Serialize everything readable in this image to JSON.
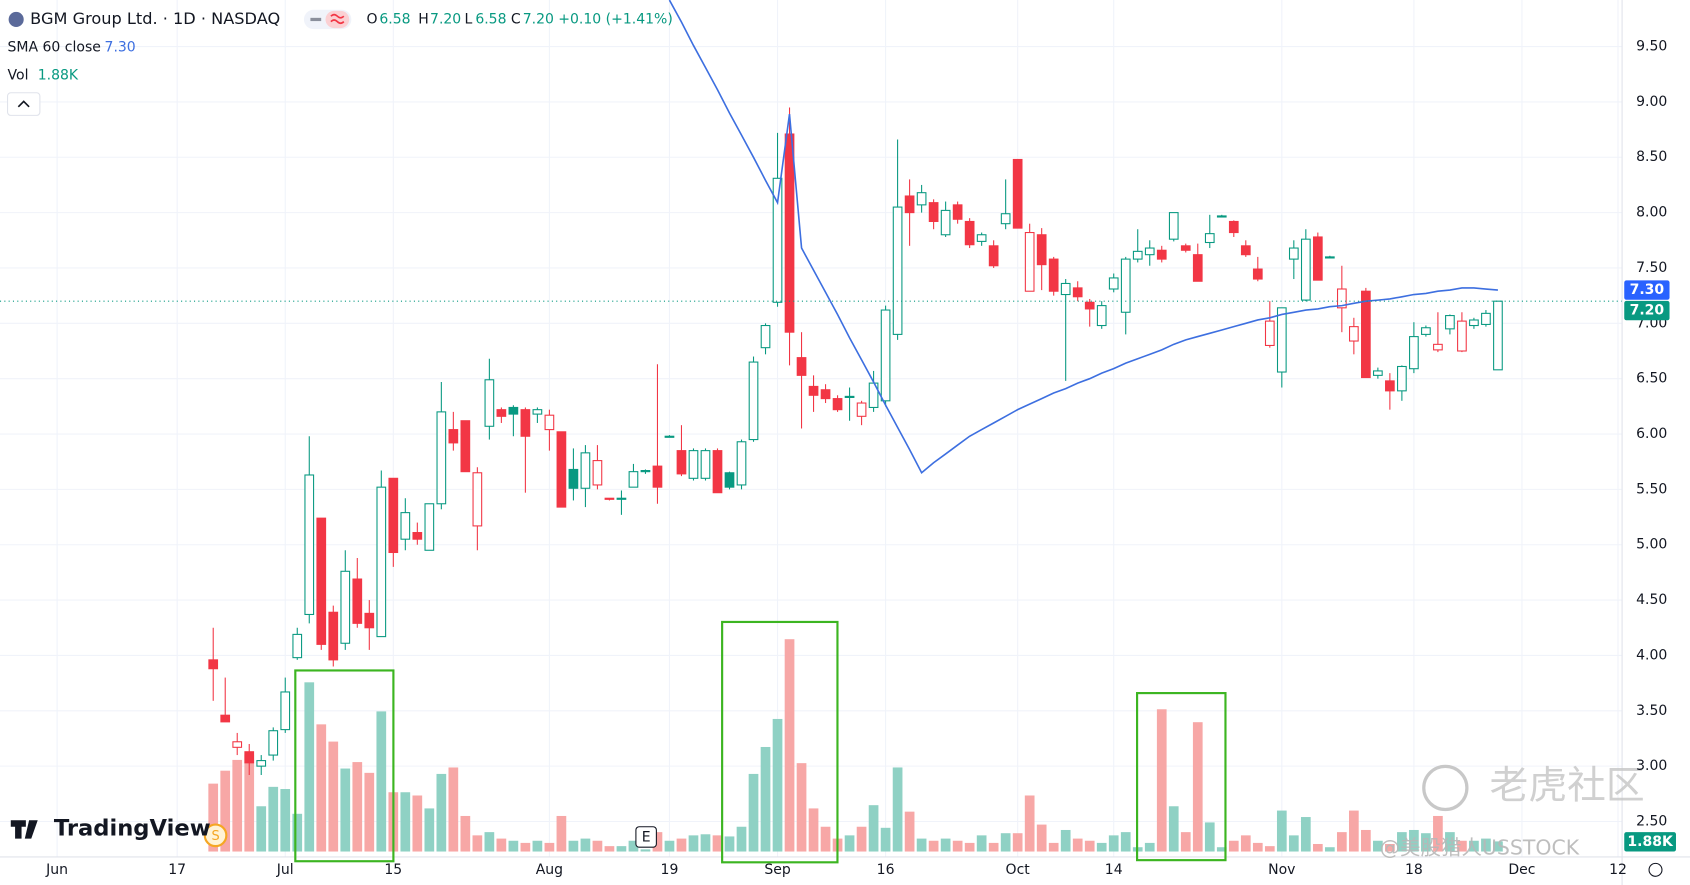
{
  "header": {
    "symbol": "BGM Group Ltd. · 1D · NASDAQ",
    "open_label": "O",
    "open": "6.58",
    "high_label": "H",
    "high": "7.20",
    "low_label": "L",
    "low": "6.58",
    "close_label": "C",
    "close": "7.20",
    "change": "+0.10 (+1.41%)"
  },
  "indicators": {
    "sma_label": "SMA 60 close",
    "sma_value": "7.30",
    "vol_label": "Vol",
    "vol_value": "1.88K"
  },
  "logo": "TradingView",
  "dividend_marker": "S",
  "earnings_marker": "E",
  "watermarks": [
    "老虎社区",
    "@美股猎人USSTOCK"
  ],
  "chart_data": {
    "type": "candlestick",
    "categories": [
      "Jun",
      null,
      null,
      null,
      null,
      null,
      null,
      null,
      null,
      null,
      "17",
      null,
      null,
      null,
      null,
      null,
      null,
      null,
      null,
      "Jul",
      null,
      null,
      null,
      null,
      null,
      null,
      null,
      null,
      "15",
      null,
      null,
      null,
      null,
      null,
      null,
      null,
      null,
      null,
      null,
      null,
      null,
      "Aug",
      null,
      null,
      null,
      null,
      null,
      null,
      null,
      null,
      null,
      "19",
      null,
      null,
      null,
      null,
      null,
      null,
      null,
      null,
      "Sep",
      null,
      null,
      null,
      null,
      null,
      null,
      null,
      null,
      "16",
      null,
      null,
      null,
      null,
      null,
      null,
      null,
      null,
      null,
      null,
      "Oct",
      null,
      null,
      null,
      null,
      null,
      null,
      null,
      "14",
      null,
      null,
      null,
      null,
      null,
      null,
      null,
      null,
      null,
      null,
      null,
      null,
      null,
      "Nov",
      null,
      null,
      null,
      null,
      null,
      null,
      null,
      null,
      null,
      null,
      "18",
      null,
      null,
      null,
      null,
      null,
      null,
      null,
      null,
      "Dec",
      null,
      null,
      null,
      null,
      null,
      null,
      null,
      "12"
    ],
    "open": [
      null,
      null,
      null,
      null,
      null,
      null,
      null,
      null,
      null,
      null,
      null,
      null,
      null,
      3.96,
      3.46,
      3.17,
      3.13,
      3.0,
      3.1,
      3.33,
      3.98,
      4.37,
      5.24,
      4.39,
      4.11,
      4.69,
      4.38,
      4.17,
      5.6,
      5.05,
      5.11,
      4.95,
      5.37,
      6.04,
      6.12,
      5.17,
      6.07,
      6.22,
      6.24,
      6.22,
      6.18,
      6.04,
      6.02,
      5.68,
      5.51,
      5.54,
      5.42,
      5.42,
      5.52,
      5.66,
      5.71,
      5.98,
      5.85,
      5.6,
      5.6,
      5.85,
      5.65,
      5.54,
      5.95,
      6.78,
      7.19,
      8.71,
      6.69,
      6.43,
      6.4,
      6.32,
      6.34,
      6.16,
      6.24,
      6.3,
      6.9,
      8.15,
      8.07,
      8.09,
      7.8,
      8.07,
      7.92,
      7.74,
      7.7,
      7.9,
      8.48,
      7.29,
      7.8,
      7.58,
      7.26,
      7.32,
      7.19,
      6.98,
      7.31,
      7.1,
      7.58,
      7.62,
      7.66,
      7.76,
      7.7,
      7.62,
      7.73,
      7.97,
      7.92,
      7.7,
      7.49,
      6.8,
      6.56,
      7.58,
      7.21,
      7.78,
      7.6,
      7.14,
      6.84,
      7.29,
      6.53,
      6.48,
      6.39,
      6.59,
      6.9,
      6.76,
      6.95,
      6.75,
      6.98,
      6.99,
      6.58,
      null,
      null,
      null,
      null,
      null,
      null,
      null,
      null,
      null,
      null
    ],
    "high": [
      null,
      null,
      null,
      null,
      null,
      null,
      null,
      null,
      null,
      null,
      null,
      null,
      null,
      4.25,
      3.8,
      3.3,
      3.2,
      3.1,
      3.35,
      3.8,
      4.25,
      5.98,
      5.24,
      4.45,
      4.95,
      4.88,
      4.5,
      5.67,
      5.6,
      5.42,
      5.2,
      5.37,
      6.47,
      6.2,
      6.12,
      5.7,
      6.68,
      6.24,
      6.26,
      6.24,
      6.24,
      6.22,
      6.02,
      5.87,
      5.9,
      5.9,
      5.42,
      5.49,
      5.73,
      5.68,
      6.63,
      5.99,
      6.08,
      5.87,
      5.87,
      5.87,
      5.66,
      5.95,
      6.7,
      7.0,
      8.72,
      8.95,
      6.92,
      6.53,
      6.45,
      6.35,
      6.42,
      6.3,
      6.57,
      7.16,
      8.66,
      8.3,
      8.25,
      8.12,
      8.1,
      8.1,
      7.95,
      7.82,
      7.75,
      8.3,
      8.48,
      7.9,
      7.86,
      7.6,
      7.4,
      7.38,
      7.22,
      7.2,
      7.45,
      7.6,
      7.85,
      7.75,
      7.7,
      8.0,
      7.72,
      7.72,
      7.98,
      7.98,
      7.93,
      7.75,
      7.6,
      7.2,
      7.14,
      7.75,
      7.85,
      7.82,
      7.61,
      7.52,
      7.05,
      7.32,
      6.6,
      6.55,
      6.62,
      7.01,
      6.98,
      7.1,
      7.08,
      7.1,
      7.05,
      7.12,
      7.2,
      null,
      null,
      null,
      null,
      null,
      null,
      null,
      null,
      null,
      null
    ],
    "low": [
      null,
      null,
      null,
      null,
      null,
      null,
      null,
      null,
      null,
      null,
      null,
      null,
      null,
      3.59,
      3.4,
      3.1,
      2.92,
      2.92,
      3.05,
      3.3,
      3.96,
      4.29,
      4.05,
      3.9,
      4.05,
      4.25,
      4.05,
      4.17,
      4.8,
      4.95,
      5.0,
      4.95,
      5.32,
      5.85,
      5.66,
      4.95,
      5.95,
      6.1,
      5.98,
      5.47,
      6.1,
      5.85,
      5.34,
      5.4,
      5.34,
      5.5,
      5.4,
      5.27,
      5.52,
      5.64,
      5.37,
      5.97,
      5.62,
      5.58,
      5.58,
      5.47,
      5.5,
      5.5,
      5.93,
      6.72,
      7.15,
      6.62,
      6.05,
      6.2,
      6.28,
      6.2,
      6.12,
      6.08,
      6.2,
      6.25,
      6.85,
      7.7,
      8.0,
      7.85,
      7.78,
      7.9,
      7.68,
      7.7,
      7.5,
      7.85,
      7.86,
      7.29,
      7.3,
      7.25,
      6.48,
      7.2,
      6.97,
      6.95,
      7.28,
      6.9,
      7.55,
      7.52,
      7.55,
      7.74,
      7.64,
      7.38,
      7.68,
      7.96,
      7.78,
      7.6,
      7.38,
      6.78,
      6.42,
      7.4,
      7.2,
      7.39,
      7.59,
      6.92,
      6.72,
      6.51,
      6.5,
      6.22,
      6.3,
      6.55,
      6.88,
      6.74,
      6.9,
      6.74,
      6.95,
      6.97,
      6.58,
      null,
      null,
      null,
      null,
      null,
      null,
      null,
      null,
      null,
      null
    ],
    "close": [
      null,
      null,
      null,
      null,
      null,
      null,
      null,
      null,
      null,
      null,
      null,
      null,
      null,
      3.88,
      3.4,
      3.22,
      3.03,
      3.05,
      3.32,
      3.67,
      4.19,
      5.63,
      4.1,
      3.96,
      4.76,
      4.29,
      4.25,
      5.52,
      4.93,
      5.29,
      5.05,
      5.37,
      6.2,
      5.92,
      5.66,
      5.65,
      6.49,
      6.16,
      6.18,
      5.98,
      6.22,
      6.17,
      5.34,
      5.51,
      5.83,
      5.76,
      5.41,
      5.42,
      5.66,
      5.67,
      5.52,
      5.98,
      5.64,
      5.85,
      5.85,
      5.47,
      5.52,
      5.93,
      6.65,
      6.98,
      8.31,
      6.92,
      6.53,
      6.35,
      6.32,
      6.22,
      6.34,
      6.28,
      6.46,
      7.12,
      8.05,
      8.0,
      8.18,
      7.92,
      8.02,
      7.94,
      7.71,
      7.8,
      7.52,
      7.99,
      7.86,
      7.82,
      7.53,
      7.29,
      7.36,
      7.24,
      7.13,
      7.16,
      7.41,
      7.58,
      7.65,
      7.68,
      7.58,
      8.0,
      7.66,
      7.38,
      7.81,
      7.97,
      7.82,
      7.62,
      7.4,
      7.02,
      7.14,
      7.68,
      7.76,
      7.39,
      7.6,
      7.31,
      6.97,
      6.51,
      6.57,
      6.39,
      6.61,
      6.88,
      6.96,
      6.81,
      7.07,
      7.02,
      7.03,
      7.09,
      7.2,
      null,
      null,
      null,
      null,
      null,
      null,
      null,
      null,
      null,
      null
    ],
    "volume": [
      null,
      null,
      null,
      null,
      null,
      null,
      null,
      null,
      null,
      null,
      null,
      null,
      null,
      12600,
      15000,
      17000,
      18000,
      8400,
      12000,
      11600,
      7000,
      31400,
      23600,
      20400,
      15400,
      16600,
      14600,
      26000,
      11000,
      11000,
      10400,
      8000,
      14400,
      15600,
      6600,
      3000,
      3600,
      2400,
      2000,
      1600,
      2000,
      1600,
      6600,
      2000,
      2400,
      2000,
      1000,
      1000,
      2000,
      400,
      3600,
      2000,
      2400,
      3000,
      3200,
      3000,
      2800,
      4600,
      14400,
      19400,
      24600,
      39400,
      16400,
      8000,
      4600,
      2400,
      3000,
      4600,
      8600,
      4400,
      15600,
      7400,
      2400,
      2000,
      2400,
      2000,
      1600,
      3000,
      1600,
      3400,
      3400,
      10400,
      5000,
      1600,
      4000,
      2400,
      2000,
      1600,
      3000,
      3600,
      800,
      1600,
      26400,
      8400,
      3600,
      24000,
      5400,
      800,
      2000,
      3000,
      1600,
      1000,
      7600,
      3000,
      6400,
      1400,
      800,
      3600,
      7600,
      4000,
      2000,
      1400,
      3600,
      4000,
      3400,
      6600,
      3600,
      2000,
      2000,
      2400,
      1880,
      null,
      null,
      null,
      null,
      null,
      null,
      null,
      null,
      null,
      null
    ],
    "sma": [
      null,
      null,
      null,
      null,
      null,
      null,
      null,
      null,
      null,
      null,
      null,
      null,
      null,
      null,
      null,
      null,
      null,
      null,
      null,
      null,
      null,
      null,
      null,
      null,
      null,
      null,
      null,
      null,
      null,
      null,
      null,
      null,
      null,
      null,
      null,
      null,
      null,
      null,
      null,
      null,
      null,
      null,
      null,
      null,
      null,
      null,
      null,
      null,
      null,
      null,
      null,
      9.92,
      9.72,
      9.51,
      9.31,
      9.11,
      8.9,
      8.7,
      8.5,
      8.29,
      8.09,
      8.89,
      7.68,
      7.48,
      7.28,
      7.08,
      6.87,
      6.67,
      6.47,
      6.26,
      6.06,
      5.86,
      5.65,
      5.74,
      5.82,
      5.9,
      5.98,
      6.04,
      6.1,
      6.16,
      6.22,
      6.27,
      6.32,
      6.37,
      6.41,
      6.46,
      6.5,
      6.55,
      6.59,
      6.64,
      6.68,
      6.72,
      6.76,
      6.81,
      6.85,
      6.88,
      6.91,
      6.94,
      6.97,
      7.0,
      7.03,
      7.05,
      7.08,
      7.1,
      7.12,
      7.13,
      7.15,
      7.16,
      7.18,
      7.2,
      7.21,
      7.22,
      7.24,
      7.26,
      7.27,
      7.29,
      7.3,
      7.32,
      7.32,
      7.31,
      7.3,
      null,
      null,
      null,
      null,
      null,
      null,
      null,
      null,
      null,
      null
    ],
    "ylim": [
      2.18,
      9.92
    ],
    "yticks": [
      {
        "value": 2.5,
        "label": "2.50"
      },
      {
        "value": 3,
        "label": "3.00"
      },
      {
        "value": 3.5,
        "label": "3.50"
      },
      {
        "value": 4,
        "label": "4.00"
      },
      {
        "value": 4.5,
        "label": "4.50"
      },
      {
        "value": 5,
        "label": "5.00"
      },
      {
        "value": 5.5,
        "label": "5.50"
      },
      {
        "value": 6,
        "label": "6.00"
      },
      {
        "value": 6.5,
        "label": "6.50"
      },
      {
        "value": 7,
        "label": "7.00"
      },
      {
        "value": 7.5,
        "label": "7.50"
      },
      {
        "value": 8,
        "label": "8.00"
      },
      {
        "value": 8.5,
        "label": "8.50"
      },
      {
        "value": 9,
        "label": "9.00"
      },
      {
        "value": 9.5,
        "label": "9.50"
      }
    ],
    "price_tags": [
      "7.30",
      "7.20"
    ],
    "volume_tag": "1.88K",
    "grid": true,
    "up_color": "#089981",
    "down_color": "#f23645",
    "volume_up_color": "#8fd1c4",
    "volume_down_color": "#f7a7a6",
    "sma_color": "#3d6fe0"
  }
}
